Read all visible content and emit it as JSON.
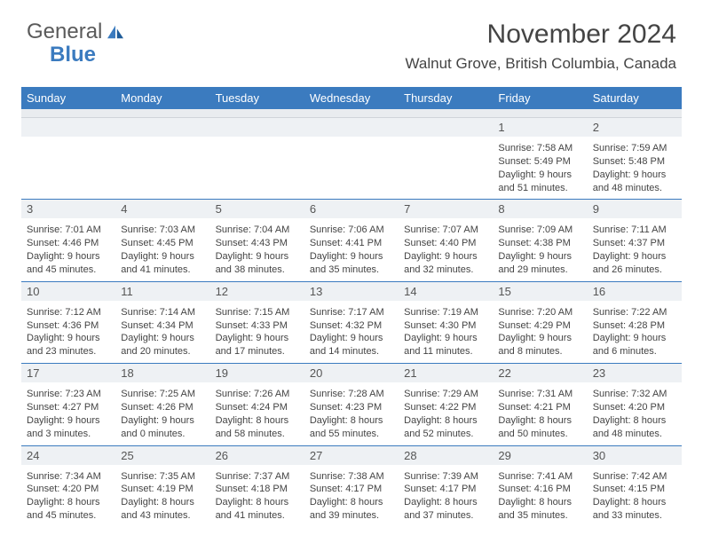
{
  "brand": {
    "part1": "General",
    "part2": "Blue"
  },
  "title": "November 2024",
  "location": "Walnut Grove, British Columbia, Canada",
  "colors": {
    "accent": "#3b7bbf",
    "header_text": "#ffffff",
    "bg": "#ffffff",
    "daynum_bg": "#eef1f4",
    "grid": "#d0d4d9",
    "text": "#444444"
  },
  "dow": [
    "Sunday",
    "Monday",
    "Tuesday",
    "Wednesday",
    "Thursday",
    "Friday",
    "Saturday"
  ],
  "weeks": [
    [
      {
        "n": "",
        "lines": []
      },
      {
        "n": "",
        "lines": []
      },
      {
        "n": "",
        "lines": []
      },
      {
        "n": "",
        "lines": []
      },
      {
        "n": "",
        "lines": []
      },
      {
        "n": "1",
        "lines": [
          "Sunrise: 7:58 AM",
          "Sunset: 5:49 PM",
          "Daylight: 9 hours",
          "and 51 minutes."
        ]
      },
      {
        "n": "2",
        "lines": [
          "Sunrise: 7:59 AM",
          "Sunset: 5:48 PM",
          "Daylight: 9 hours",
          "and 48 minutes."
        ]
      }
    ],
    [
      {
        "n": "3",
        "lines": [
          "Sunrise: 7:01 AM",
          "Sunset: 4:46 PM",
          "Daylight: 9 hours",
          "and 45 minutes."
        ]
      },
      {
        "n": "4",
        "lines": [
          "Sunrise: 7:03 AM",
          "Sunset: 4:45 PM",
          "Daylight: 9 hours",
          "and 41 minutes."
        ]
      },
      {
        "n": "5",
        "lines": [
          "Sunrise: 7:04 AM",
          "Sunset: 4:43 PM",
          "Daylight: 9 hours",
          "and 38 minutes."
        ]
      },
      {
        "n": "6",
        "lines": [
          "Sunrise: 7:06 AM",
          "Sunset: 4:41 PM",
          "Daylight: 9 hours",
          "and 35 minutes."
        ]
      },
      {
        "n": "7",
        "lines": [
          "Sunrise: 7:07 AM",
          "Sunset: 4:40 PM",
          "Daylight: 9 hours",
          "and 32 minutes."
        ]
      },
      {
        "n": "8",
        "lines": [
          "Sunrise: 7:09 AM",
          "Sunset: 4:38 PM",
          "Daylight: 9 hours",
          "and 29 minutes."
        ]
      },
      {
        "n": "9",
        "lines": [
          "Sunrise: 7:11 AM",
          "Sunset: 4:37 PM",
          "Daylight: 9 hours",
          "and 26 minutes."
        ]
      }
    ],
    [
      {
        "n": "10",
        "lines": [
          "Sunrise: 7:12 AM",
          "Sunset: 4:36 PM",
          "Daylight: 9 hours",
          "and 23 minutes."
        ]
      },
      {
        "n": "11",
        "lines": [
          "Sunrise: 7:14 AM",
          "Sunset: 4:34 PM",
          "Daylight: 9 hours",
          "and 20 minutes."
        ]
      },
      {
        "n": "12",
        "lines": [
          "Sunrise: 7:15 AM",
          "Sunset: 4:33 PM",
          "Daylight: 9 hours",
          "and 17 minutes."
        ]
      },
      {
        "n": "13",
        "lines": [
          "Sunrise: 7:17 AM",
          "Sunset: 4:32 PM",
          "Daylight: 9 hours",
          "and 14 minutes."
        ]
      },
      {
        "n": "14",
        "lines": [
          "Sunrise: 7:19 AM",
          "Sunset: 4:30 PM",
          "Daylight: 9 hours",
          "and 11 minutes."
        ]
      },
      {
        "n": "15",
        "lines": [
          "Sunrise: 7:20 AM",
          "Sunset: 4:29 PM",
          "Daylight: 9 hours",
          "and 8 minutes."
        ]
      },
      {
        "n": "16",
        "lines": [
          "Sunrise: 7:22 AM",
          "Sunset: 4:28 PM",
          "Daylight: 9 hours",
          "and 6 minutes."
        ]
      }
    ],
    [
      {
        "n": "17",
        "lines": [
          "Sunrise: 7:23 AM",
          "Sunset: 4:27 PM",
          "Daylight: 9 hours",
          "and 3 minutes."
        ]
      },
      {
        "n": "18",
        "lines": [
          "Sunrise: 7:25 AM",
          "Sunset: 4:26 PM",
          "Daylight: 9 hours",
          "and 0 minutes."
        ]
      },
      {
        "n": "19",
        "lines": [
          "Sunrise: 7:26 AM",
          "Sunset: 4:24 PM",
          "Daylight: 8 hours",
          "and 58 minutes."
        ]
      },
      {
        "n": "20",
        "lines": [
          "Sunrise: 7:28 AM",
          "Sunset: 4:23 PM",
          "Daylight: 8 hours",
          "and 55 minutes."
        ]
      },
      {
        "n": "21",
        "lines": [
          "Sunrise: 7:29 AM",
          "Sunset: 4:22 PM",
          "Daylight: 8 hours",
          "and 52 minutes."
        ]
      },
      {
        "n": "22",
        "lines": [
          "Sunrise: 7:31 AM",
          "Sunset: 4:21 PM",
          "Daylight: 8 hours",
          "and 50 minutes."
        ]
      },
      {
        "n": "23",
        "lines": [
          "Sunrise: 7:32 AM",
          "Sunset: 4:20 PM",
          "Daylight: 8 hours",
          "and 48 minutes."
        ]
      }
    ],
    [
      {
        "n": "24",
        "lines": [
          "Sunrise: 7:34 AM",
          "Sunset: 4:20 PM",
          "Daylight: 8 hours",
          "and 45 minutes."
        ]
      },
      {
        "n": "25",
        "lines": [
          "Sunrise: 7:35 AM",
          "Sunset: 4:19 PM",
          "Daylight: 8 hours",
          "and 43 minutes."
        ]
      },
      {
        "n": "26",
        "lines": [
          "Sunrise: 7:37 AM",
          "Sunset: 4:18 PM",
          "Daylight: 8 hours",
          "and 41 minutes."
        ]
      },
      {
        "n": "27",
        "lines": [
          "Sunrise: 7:38 AM",
          "Sunset: 4:17 PM",
          "Daylight: 8 hours",
          "and 39 minutes."
        ]
      },
      {
        "n": "28",
        "lines": [
          "Sunrise: 7:39 AM",
          "Sunset: 4:17 PM",
          "Daylight: 8 hours",
          "and 37 minutes."
        ]
      },
      {
        "n": "29",
        "lines": [
          "Sunrise: 7:41 AM",
          "Sunset: 4:16 PM",
          "Daylight: 8 hours",
          "and 35 minutes."
        ]
      },
      {
        "n": "30",
        "lines": [
          "Sunrise: 7:42 AM",
          "Sunset: 4:15 PM",
          "Daylight: 8 hours",
          "and 33 minutes."
        ]
      }
    ]
  ]
}
